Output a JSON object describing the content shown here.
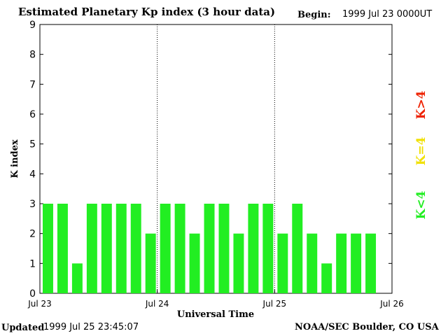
{
  "header": {
    "title": "Estimated Planetary Kp index (3 hour data)",
    "begin_label": "Begin:",
    "begin_value": "1999 Jul 23 0000UT"
  },
  "footer": {
    "updated_label": "Updated",
    "updated_value": "1999 Jul 25 23:45:07",
    "source": "NOAA/SEC Boulder, CO USA"
  },
  "legend": [
    {
      "label": "K<4",
      "color": "#22ee22"
    },
    {
      "label": "K=4",
      "color": "#f0e000"
    },
    {
      "label": "K>4",
      "color": "#ee2200"
    }
  ],
  "chart_data": {
    "type": "bar",
    "title": "Estimated Planetary Kp index (3 hour data)",
    "xlabel": "Universal Time",
    "ylabel": "K index",
    "ylim": [
      0,
      9
    ],
    "yticks": [
      0,
      1,
      2,
      3,
      4,
      5,
      6,
      7,
      8,
      9
    ],
    "xticks": [
      "Jul 23",
      "Jul 24",
      "Jul 25",
      "Jul 26"
    ],
    "day_separators": [
      "Jul 24",
      "Jul 25"
    ],
    "interval_hours": 3,
    "bar_color": "#22ee22",
    "values": [
      3,
      3,
      1,
      3,
      3,
      3,
      3,
      2,
      3,
      3,
      2,
      3,
      3,
      2,
      3,
      3,
      2,
      3,
      2,
      1,
      2,
      2,
      2
    ]
  }
}
